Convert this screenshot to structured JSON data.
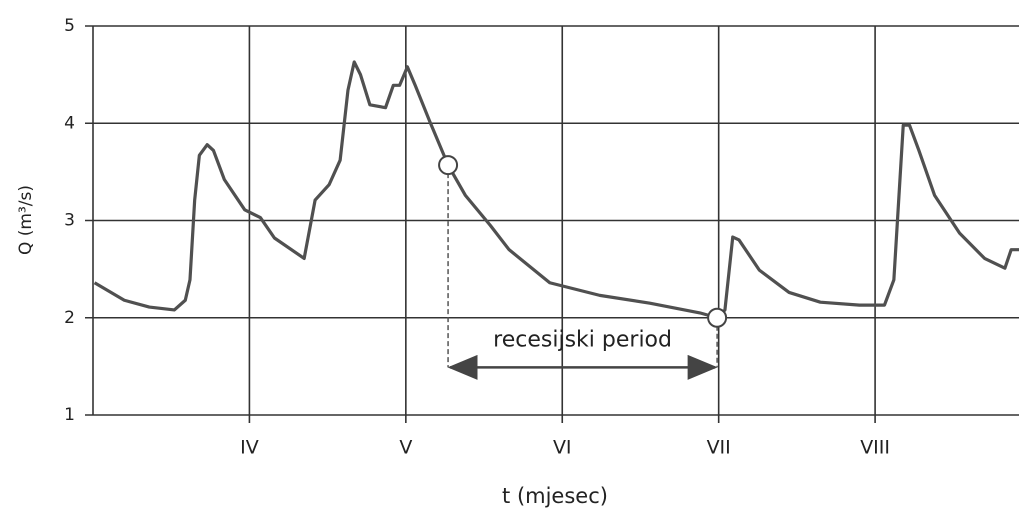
{
  "chart_data": {
    "type": "line",
    "y_label": "Q (m³/s)",
    "x_label": "t (mjesec)",
    "xlim": [
      3,
      8.92
    ],
    "ylim": [
      1,
      5
    ],
    "xticks": [
      {
        "value": 4,
        "label": "IV"
      },
      {
        "value": 5,
        "label": "V"
      },
      {
        "value": 6,
        "label": "VI"
      },
      {
        "value": 7,
        "label": "VII"
      },
      {
        "value": 8,
        "label": "VIII"
      }
    ],
    "yticks": [
      1,
      2,
      3,
      4,
      5
    ],
    "grid": true,
    "color": "#505050",
    "x": [
      3.01,
      3.2,
      3.36,
      3.52,
      3.59,
      3.62,
      3.65,
      3.68,
      3.73,
      3.77,
      3.84,
      3.97,
      4.07,
      4.16,
      4.35,
      4.42,
      4.51,
      4.58,
      4.63,
      4.67,
      4.71,
      4.77,
      4.87,
      4.92,
      4.96,
      5.01,
      5.06,
      5.15,
      5.27,
      5.38,
      5.54,
      5.66,
      5.92,
      6.24,
      6.56,
      6.88,
      6.99,
      7.04,
      7.09,
      7.13,
      7.26,
      7.45,
      7.65,
      7.9,
      8.06,
      8.12,
      8.18,
      8.22,
      8.28,
      8.38,
      8.54,
      8.7,
      8.83,
      8.87,
      8.92
    ],
    "values": [
      2.36,
      2.18,
      2.11,
      2.08,
      2.18,
      2.39,
      3.21,
      3.67,
      3.78,
      3.72,
      3.42,
      3.11,
      3.03,
      2.82,
      2.61,
      3.21,
      3.37,
      3.62,
      4.34,
      4.63,
      4.5,
      4.19,
      4.16,
      4.39,
      4.39,
      4.58,
      4.39,
      4.03,
      3.57,
      3.26,
      2.95,
      2.7,
      2.36,
      2.23,
      2.15,
      2.05,
      2.0,
      2.08,
      2.83,
      2.8,
      2.49,
      2.26,
      2.16,
      2.13,
      2.13,
      2.39,
      3.98,
      3.98,
      3.72,
      3.26,
      2.87,
      2.61,
      2.51,
      2.7,
      2.7
    ],
    "annotation": {
      "text": "recesijski period",
      "x_start": 5.27,
      "y_start": 3.57,
      "x_end": 6.99,
      "y_end": 2.0,
      "arrow_y": 1.49
    }
  }
}
